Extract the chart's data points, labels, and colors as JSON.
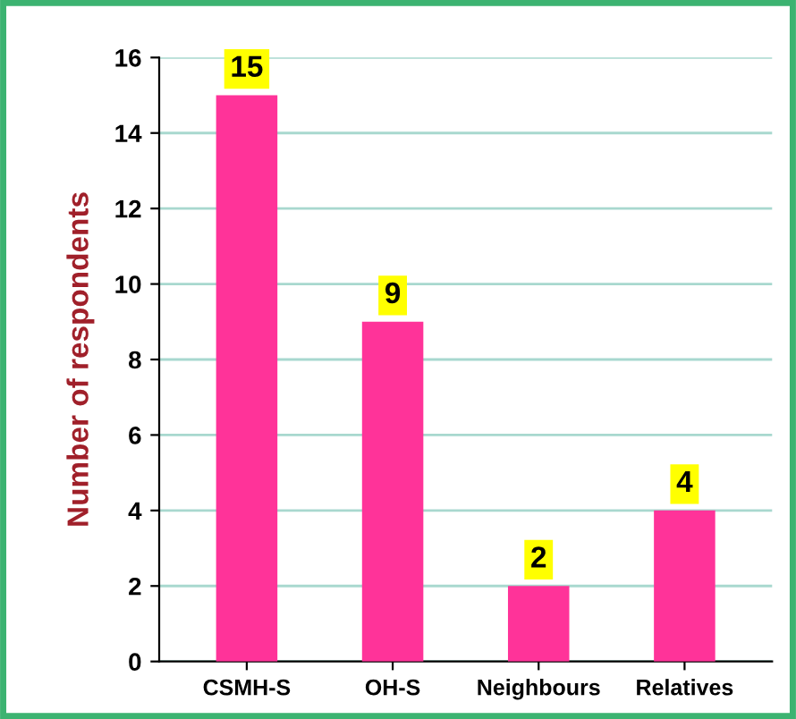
{
  "chart_data": {
    "type": "bar",
    "ylabel": "Number of respondents",
    "categories": [
      "CSMH-S",
      "OH-S",
      "Neighbours",
      "Relatives"
    ],
    "values": [
      15,
      9,
      2,
      4
    ],
    "color": "#ff3399",
    "ylim": [
      0,
      16
    ],
    "yticks": [
      0,
      2,
      4,
      6,
      8,
      10,
      12,
      14,
      16
    ],
    "grid": "y",
    "data_labels": true
  }
}
